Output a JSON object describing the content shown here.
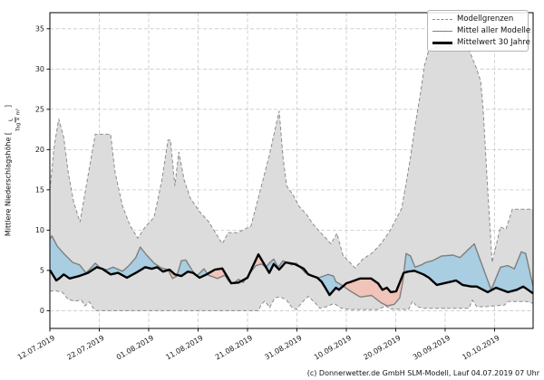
{
  "footer_text": "(c) Donnerwetter.de GmbH SLM-Modell, Lauf 04.07.2019 07 Uhr",
  "chart_data": {
    "type": "line",
    "title": "",
    "ylabel_prefix": "Mittlere Niederschlagshöhe [",
    "ylabel_suffix": "]",
    "unit_numerator": "L",
    "unit_denominator": "Tag × m²",
    "ylim": [
      -2.2,
      37.0
    ],
    "yticks": [
      0,
      5,
      10,
      15,
      20,
      25,
      30,
      35
    ],
    "x_total_days": 97.8,
    "xticks": [
      {
        "day": 0,
        "label": "12.07.2019"
      },
      {
        "day": 10,
        "label": "22.07.2019"
      },
      {
        "day": 20,
        "label": "01.08.2019"
      },
      {
        "day": 30,
        "label": "11.08.2019"
      },
      {
        "day": 40,
        "label": "21.08.2019"
      },
      {
        "day": 50,
        "label": "31.08.2019"
      },
      {
        "day": 60,
        "label": "10.09.2019"
      },
      {
        "day": 70,
        "label": "20.09.2019"
      },
      {
        "day": 80,
        "label": "30.09.2019"
      },
      {
        "day": 90,
        "label": "10.10.2019"
      }
    ],
    "grid": true,
    "legend_position": "top-right",
    "legend": [
      {
        "label": "Modellgrenzen",
        "style": "dashed"
      },
      {
        "label": "Mittel aller Modelle",
        "style": "solid"
      },
      {
        "label": "Mittelwert 30 Jahre",
        "style": "thick"
      }
    ],
    "colors": {
      "envelope_fill": "#dcdcdc",
      "envelope_edge": "#8c8c8c",
      "above_mean_fill": "#a9cde1",
      "below_mean_fill": "#f0c4b8",
      "model_mean_line": "#7f7f7f",
      "mean30_line": "#000000",
      "grid": "#c7c7c7",
      "spine": "#000000"
    },
    "series": [
      {
        "name": "model_max",
        "role": "envelope_upper",
        "points": [
          [
            0,
            15.0
          ],
          [
            0.9,
            20.5
          ],
          [
            1.8,
            23.8
          ],
          [
            2.8,
            21.5
          ],
          [
            3.7,
            17.2
          ],
          [
            4.8,
            13.5
          ],
          [
            6.1,
            11.0
          ],
          [
            7.5,
            16.0
          ],
          [
            9.2,
            21.9
          ],
          [
            12.3,
            21.9
          ],
          [
            13.2,
            17.2
          ],
          [
            14.7,
            13.0
          ],
          [
            16.2,
            10.6
          ],
          [
            17.8,
            9.0
          ],
          [
            19.3,
            10.4
          ],
          [
            21.1,
            11.6
          ],
          [
            22.6,
            16.0
          ],
          [
            23.9,
            21.2
          ],
          [
            24.4,
            21.2
          ],
          [
            25.3,
            15.5
          ],
          [
            26.1,
            19.7
          ],
          [
            27.2,
            16.2
          ],
          [
            28.4,
            14.0
          ],
          [
            30.3,
            12.3
          ],
          [
            32.1,
            11.1
          ],
          [
            33.6,
            9.6
          ],
          [
            34.9,
            8.3
          ],
          [
            36.1,
            9.7
          ],
          [
            38.0,
            9.7
          ],
          [
            40.7,
            10.5
          ],
          [
            42.6,
            15.0
          ],
          [
            44.5,
            19.5
          ],
          [
            46.4,
            24.8
          ],
          [
            47.2,
            19.0
          ],
          [
            47.9,
            15.5
          ],
          [
            49.2,
            14.4
          ],
          [
            50.5,
            12.9
          ],
          [
            51.9,
            12.0
          ],
          [
            53.2,
            10.8
          ],
          [
            54.5,
            9.9
          ],
          [
            56.9,
            8.3
          ],
          [
            58.1,
            9.6
          ],
          [
            59.3,
            6.9
          ],
          [
            61.8,
            5.3
          ],
          [
            63.3,
            6.4
          ],
          [
            65.1,
            7.1
          ],
          [
            67.0,
            8.3
          ],
          [
            68.8,
            9.9
          ],
          [
            70.0,
            11.3
          ],
          [
            71.2,
            12.7
          ],
          [
            72.1,
            15.8
          ],
          [
            73.0,
            19.1
          ],
          [
            73.9,
            22.9
          ],
          [
            74.9,
            26.6
          ],
          [
            75.8,
            30.4
          ],
          [
            76.7,
            32.4
          ],
          [
            79.8,
            33.0
          ],
          [
            82.6,
            33.2
          ],
          [
            84.8,
            32.4
          ],
          [
            86.2,
            30.3
          ],
          [
            87.2,
            28.5
          ],
          [
            87.7,
            24.8
          ],
          [
            88.6,
            15.0
          ],
          [
            89.5,
            6.0
          ],
          [
            91.2,
            10.4
          ],
          [
            92.3,
            10.1
          ],
          [
            93.6,
            12.6
          ],
          [
            97.8,
            12.6
          ]
        ]
      },
      {
        "name": "model_min",
        "role": "envelope_lower",
        "points": [
          [
            0,
            2.4
          ],
          [
            1.0,
            2.5
          ],
          [
            2.5,
            2.3
          ],
          [
            3.7,
            1.4
          ],
          [
            5.0,
            1.2
          ],
          [
            6.4,
            1.3
          ],
          [
            7.1,
            0.6
          ],
          [
            8.0,
            1.1
          ],
          [
            8.8,
            0.3
          ],
          [
            9.4,
            0.0
          ],
          [
            42.2,
            0.0
          ],
          [
            42.8,
            0.8
          ],
          [
            43.5,
            1.2
          ],
          [
            44.5,
            0.4
          ],
          [
            45.5,
            1.6
          ],
          [
            46.5,
            1.7
          ],
          [
            47.8,
            1.4
          ],
          [
            49.0,
            0.4
          ],
          [
            49.9,
            0.15
          ],
          [
            51.0,
            1.0
          ],
          [
            52.3,
            1.8
          ],
          [
            53.8,
            0.9
          ],
          [
            54.6,
            0.3
          ],
          [
            56.0,
            0.5
          ],
          [
            57.5,
            0.9
          ],
          [
            59.0,
            0.3
          ],
          [
            60.6,
            0.15
          ],
          [
            66.5,
            0.15
          ],
          [
            67.9,
            0.6
          ],
          [
            69.0,
            0.2
          ],
          [
            72.6,
            0.15
          ],
          [
            73.4,
            1.2
          ],
          [
            74.3,
            0.5
          ],
          [
            75.5,
            0.3
          ],
          [
            84.8,
            0.3
          ],
          [
            85.5,
            1.3
          ],
          [
            86.4,
            0.5
          ],
          [
            88.0,
            0.5
          ],
          [
            90.0,
            0.6
          ],
          [
            92.0,
            0.7
          ],
          [
            92.7,
            1.15
          ],
          [
            96.5,
            1.15
          ],
          [
            97.8,
            0.9
          ]
        ]
      },
      {
        "name": "model_mean",
        "role": "mean_of_models",
        "points": [
          [
            0,
            8.9
          ],
          [
            0.4,
            9.3
          ],
          [
            1.5,
            8.0
          ],
          [
            2.8,
            7.1
          ],
          [
            4.6,
            6.0
          ],
          [
            6.0,
            5.7
          ],
          [
            7.3,
            4.7
          ],
          [
            8.3,
            5.3
          ],
          [
            9.2,
            5.9
          ],
          [
            10.4,
            5.2
          ],
          [
            11.6,
            5.1
          ],
          [
            12.8,
            5.4
          ],
          [
            14.7,
            4.9
          ],
          [
            16.0,
            5.6
          ],
          [
            17.4,
            6.6
          ],
          [
            18.3,
            7.9
          ],
          [
            19.6,
            6.9
          ],
          [
            21.1,
            5.9
          ],
          [
            22.6,
            5.3
          ],
          [
            23.9,
            5.1
          ],
          [
            24.8,
            4.0
          ],
          [
            25.7,
            4.3
          ],
          [
            26.6,
            6.2
          ],
          [
            27.5,
            6.3
          ],
          [
            28.8,
            5.0
          ],
          [
            29.7,
            4.3
          ],
          [
            31.2,
            5.2
          ],
          [
            32.1,
            4.4
          ],
          [
            33.9,
            4.0
          ],
          [
            35.4,
            4.4
          ],
          [
            36.3,
            3.6
          ],
          [
            37.2,
            3.4
          ],
          [
            38.2,
            3.9
          ],
          [
            39.1,
            3.5
          ],
          [
            40.4,
            4.6
          ],
          [
            41.7,
            5.6
          ],
          [
            42.8,
            5.8
          ],
          [
            43.7,
            5.4
          ],
          [
            44.4,
            5.9
          ],
          [
            45.3,
            6.4
          ],
          [
            46.2,
            5.4
          ],
          [
            47.2,
            6.2
          ],
          [
            48.1,
            5.9
          ],
          [
            49.0,
            5.7
          ],
          [
            49.9,
            5.9
          ],
          [
            50.8,
            5.3
          ],
          [
            51.7,
            4.7
          ],
          [
            52.7,
            4.4
          ],
          [
            53.6,
            4.2
          ],
          [
            54.5,
            4.1
          ],
          [
            55.4,
            4.3
          ],
          [
            56.3,
            4.5
          ],
          [
            57.4,
            4.3
          ],
          [
            57.9,
            3.6
          ],
          [
            59.0,
            3.2
          ],
          [
            60.9,
            2.4
          ],
          [
            62.8,
            1.7
          ],
          [
            65.1,
            1.9
          ],
          [
            67.0,
            1.0
          ],
          [
            68.3,
            0.6
          ],
          [
            69.7,
            0.8
          ],
          [
            70.8,
            1.6
          ],
          [
            71.4,
            3.5
          ],
          [
            72.1,
            7.1
          ],
          [
            73.0,
            6.8
          ],
          [
            73.9,
            5.4
          ],
          [
            75.2,
            5.7
          ],
          [
            76.1,
            6.0
          ],
          [
            77.4,
            6.2
          ],
          [
            79.3,
            6.8
          ],
          [
            81.6,
            6.9
          ],
          [
            83.0,
            6.6
          ],
          [
            85.9,
            8.3
          ],
          [
            88.4,
            4.1
          ],
          [
            89.3,
            2.6
          ],
          [
            91.2,
            5.4
          ],
          [
            92.7,
            5.6
          ],
          [
            94.0,
            5.2
          ],
          [
            95.4,
            7.3
          ],
          [
            96.3,
            7.1
          ],
          [
            97.8,
            3.0
          ]
        ]
      },
      {
        "name": "mean30",
        "role": "30_year_mean",
        "points": [
          [
            0,
            5.05
          ],
          [
            1.3,
            3.75
          ],
          [
            2.1,
            4.1
          ],
          [
            2.8,
            4.5
          ],
          [
            4.0,
            4.0
          ],
          [
            5.9,
            4.3
          ],
          [
            7.7,
            4.7
          ],
          [
            9.5,
            5.4
          ],
          [
            10.6,
            5.2
          ],
          [
            12.3,
            4.5
          ],
          [
            13.8,
            4.7
          ],
          [
            15.6,
            4.1
          ],
          [
            17.4,
            4.7
          ],
          [
            19.3,
            5.4
          ],
          [
            20.6,
            5.2
          ],
          [
            21.7,
            5.4
          ],
          [
            22.9,
            4.85
          ],
          [
            24.2,
            5.1
          ],
          [
            25.3,
            4.5
          ],
          [
            26.6,
            4.3
          ],
          [
            27.9,
            4.85
          ],
          [
            29.0,
            4.7
          ],
          [
            30.3,
            4.1
          ],
          [
            31.7,
            4.5
          ],
          [
            33.4,
            5.1
          ],
          [
            34.9,
            5.25
          ],
          [
            36.7,
            3.4
          ],
          [
            38.2,
            3.5
          ],
          [
            40.0,
            4.1
          ],
          [
            42.2,
            7.0
          ],
          [
            44.4,
            4.7
          ],
          [
            45.3,
            5.8
          ],
          [
            46.4,
            5.1
          ],
          [
            47.7,
            6.0
          ],
          [
            49.5,
            5.8
          ],
          [
            50.5,
            5.5
          ],
          [
            51.4,
            5.2
          ],
          [
            52.3,
            4.5
          ],
          [
            53.2,
            4.3
          ],
          [
            54.1,
            4.1
          ],
          [
            55.0,
            3.6
          ],
          [
            55.6,
            3.0
          ],
          [
            56.6,
            1.95
          ],
          [
            57.4,
            2.5
          ],
          [
            57.9,
            2.85
          ],
          [
            58.5,
            2.6
          ],
          [
            60.0,
            3.4
          ],
          [
            61.0,
            3.6
          ],
          [
            62.8,
            4.0
          ],
          [
            65.0,
            4.0
          ],
          [
            66.4,
            3.4
          ],
          [
            67.3,
            2.6
          ],
          [
            68.2,
            2.85
          ],
          [
            69.0,
            2.3
          ],
          [
            70.1,
            2.4
          ],
          [
            71.6,
            4.7
          ],
          [
            72.5,
            4.85
          ],
          [
            73.8,
            4.95
          ],
          [
            75.6,
            4.5
          ],
          [
            76.7,
            4.1
          ],
          [
            78.3,
            3.2
          ],
          [
            81.1,
            3.6
          ],
          [
            82.2,
            3.75
          ],
          [
            83.5,
            3.2
          ],
          [
            85.3,
            3.0
          ],
          [
            86.4,
            3.0
          ],
          [
            88.6,
            2.3
          ],
          [
            90.3,
            2.85
          ],
          [
            92.7,
            2.3
          ],
          [
            94.5,
            2.6
          ],
          [
            95.8,
            3.0
          ],
          [
            97.8,
            2.15
          ]
        ]
      }
    ]
  }
}
